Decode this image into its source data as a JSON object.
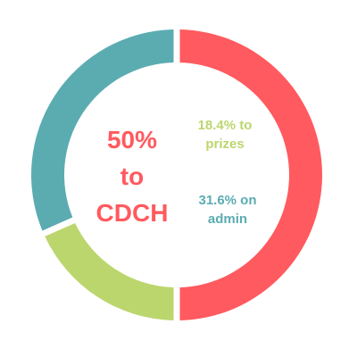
{
  "chart_data": {
    "type": "pie",
    "donut": true,
    "categories": [
      "to CDCH",
      "to prizes",
      "on admin"
    ],
    "values": [
      50,
      18.4,
      31.6
    ],
    "colors": [
      "#ff5a5f",
      "#bcd66e",
      "#5bacb1"
    ],
    "labels": [
      {
        "lines": [
          "50%",
          "to",
          "CDCH"
        ],
        "color": "#ff5a5f"
      },
      {
        "lines": [
          "18.4% to",
          "prizes"
        ],
        "color": "#bcd66e"
      },
      {
        "lines": [
          "31.6% on",
          "admin"
        ],
        "color": "#5bacb1"
      }
    ],
    "title": "",
    "legend": "none"
  }
}
